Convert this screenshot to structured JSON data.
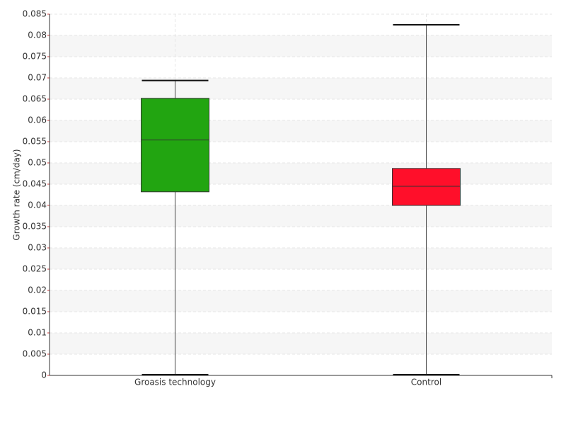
{
  "chart_data": {
    "type": "box",
    "y_label": "Growth rate (cm/day)",
    "categories": [
      "Groasis technology",
      "Control"
    ],
    "boxes": [
      {
        "min": 0,
        "q1": 0.0432,
        "median": 0.0554,
        "q3": 0.0652,
        "max": 0.0694,
        "color": "#22a511"
      },
      {
        "min": 0,
        "q1": 0.04,
        "median": 0.0445,
        "q3": 0.0487,
        "max": 0.0825,
        "color": "#ff0f2a"
      }
    ],
    "ylim": [
      0,
      0.085
    ],
    "yticks": [
      0,
      0.005,
      0.01,
      0.015,
      0.02,
      0.025,
      0.03,
      0.035,
      0.04,
      0.045,
      0.05,
      0.055,
      0.06,
      0.065,
      0.07,
      0.075,
      0.08,
      0.085
    ],
    "grid": true
  }
}
